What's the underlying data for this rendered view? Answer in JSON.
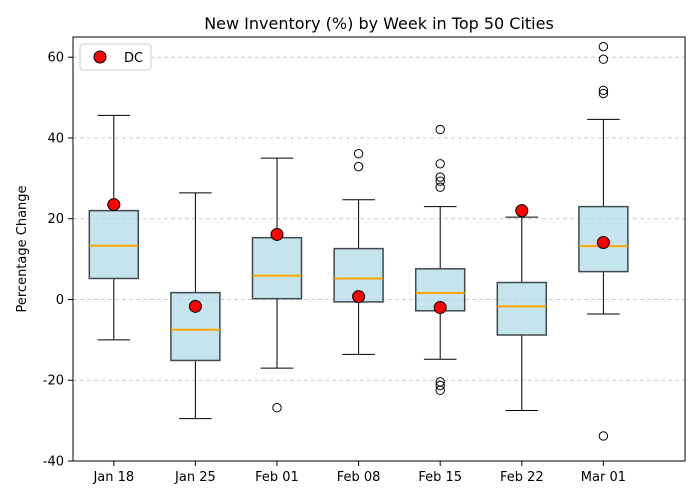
{
  "chart_data": {
    "type": "box",
    "title": "New Inventory (%) by Week in Top 50 Cities",
    "xlabel": "",
    "ylabel": "Percentage Change",
    "ylim": [
      -40,
      65
    ],
    "yticks": [
      -40,
      -20,
      0,
      20,
      40,
      60
    ],
    "grid": "y-dashed",
    "legend": {
      "placement": "top-left",
      "entries": [
        "DC"
      ]
    },
    "categories": [
      "Jan 18",
      "Jan 25",
      "Feb 01",
      "Feb 08",
      "Feb 15",
      "Feb 22",
      "Mar 01"
    ],
    "boxes": [
      {
        "whisker_low": -10,
        "q1": 5.2,
        "median": 13.3,
        "q3": 22,
        "whisker_high": 45.6,
        "outliers": []
      },
      {
        "whisker_low": -29.5,
        "q1": -15.1,
        "median": -7.5,
        "q3": 1.7,
        "whisker_high": 26.4,
        "outliers": []
      },
      {
        "whisker_low": -17,
        "q1": 0.2,
        "median": 5.9,
        "q3": 15.3,
        "whisker_high": 35,
        "outliers": [
          -26.8
        ]
      },
      {
        "whisker_low": -13.6,
        "q1": -0.6,
        "median": 5.2,
        "q3": 12.6,
        "whisker_high": 24.7,
        "outliers": [
          32.9,
          36.1
        ]
      },
      {
        "whisker_low": -14.8,
        "q1": -2.8,
        "median": 1.6,
        "q3": 7.6,
        "whisker_high": 23,
        "outliers": [
          -22.5,
          -21.3,
          -20.4,
          27.8,
          29.3,
          30.3,
          33.6,
          42.1
        ]
      },
      {
        "whisker_low": -27.5,
        "q1": -8.8,
        "median": -1.7,
        "q3": 4.2,
        "whisker_high": 20.4,
        "outliers": []
      },
      {
        "whisker_low": -3.6,
        "q1": 6.9,
        "median": 13.2,
        "q3": 23,
        "whisker_high": 44.6,
        "outliers": [
          -33.8,
          51,
          51.8,
          59.5,
          62.6
        ]
      }
    ],
    "series": [
      {
        "name": "DC",
        "type": "scatter",
        "values": [
          23.5,
          -1.7,
          16.1,
          0.7,
          -2,
          22,
          14.1
        ]
      }
    ],
    "colors": {
      "box_fill": "#add8e6",
      "box_edge": "#3f4a4f",
      "median": "#ffa500",
      "dc_marker": "#ff0000",
      "grid": "#cccccc"
    }
  }
}
